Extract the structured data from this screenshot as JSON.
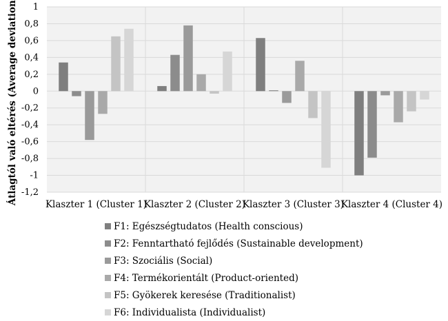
{
  "chart_data": {
    "type": "bar",
    "title": "",
    "xlabel": "",
    "ylabel": "Átlagtól való eltérés (Average deviation)",
    "ylim": [
      -1.2,
      1
    ],
    "yticks": [
      1,
      0.8,
      0.6,
      0.4,
      0.2,
      0,
      -0.2,
      -0.4,
      -0.6,
      -0.8,
      -1,
      -1.2
    ],
    "ytick_labels": [
      "1",
      "0,8",
      "0,6",
      "0,4",
      "0,2",
      "0",
      "-0,2",
      "-0,4",
      "-0,6",
      "-0,8",
      "-1",
      "-1,2"
    ],
    "grid": true,
    "legend_position": "bottom",
    "categories": [
      "Klaszter 1 (Cluster 1)",
      "Klaszter 2 (Cluster 2)",
      "Klaszter 3 (Cluster 3)",
      "Klaszter 4 (Cluster 4)"
    ],
    "series": [
      {
        "name": "F1: Egészségtudatos (Health conscious)",
        "color": "#7f7f7f",
        "values": [
          0.34,
          0.06,
          0.63,
          -1.0
        ]
      },
      {
        "name": "F2: Fenntartható fejlődés (Sustainable development)",
        "color": "#8c8c8c",
        "values": [
          -0.06,
          0.43,
          0.01,
          -0.79
        ]
      },
      {
        "name": "F3: Szociális (Social)",
        "color": "#9a9a9a",
        "values": [
          -0.58,
          0.78,
          -0.14,
          -0.05
        ]
      },
      {
        "name": "F4: Termékorientált (Product-oriented)",
        "color": "#a9a9a9",
        "values": [
          -0.27,
          0.2,
          0.36,
          -0.37
        ]
      },
      {
        "name": "F5: Gyökerek keresése (Traditionalist)",
        "color": "#c4c4c4",
        "values": [
          0.65,
          -0.03,
          -0.32,
          -0.24
        ]
      },
      {
        "name": "F6: Individualista (Individualist)",
        "color": "#d6d6d6",
        "values": [
          0.74,
          0.47,
          -0.91,
          -0.1
        ]
      }
    ]
  }
}
